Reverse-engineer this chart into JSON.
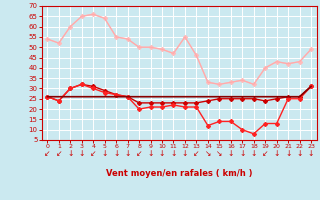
{
  "background_color": "#cbe9f0",
  "grid_color": "#ffffff",
  "xlabel": "Vent moyen/en rafales ( km/h )",
  "xlabel_color": "#cc0000",
  "tick_color": "#cc0000",
  "x": [
    0,
    1,
    2,
    3,
    4,
    5,
    6,
    7,
    8,
    9,
    10,
    11,
    12,
    13,
    14,
    15,
    16,
    17,
    18,
    19,
    20,
    21,
    22,
    23
  ],
  "ylim": [
    5,
    70
  ],
  "yticks": [
    5,
    10,
    15,
    20,
    25,
    30,
    35,
    40,
    45,
    50,
    55,
    60,
    65,
    70
  ],
  "line1": {
    "y": [
      54,
      52,
      60,
      65,
      66,
      64,
      55,
      54,
      50,
      50,
      49,
      47,
      55,
      46,
      33,
      32,
      33,
      34,
      32,
      40,
      43,
      42,
      43,
      49
    ],
    "color": "#ffbbbb",
    "lw": 1.0,
    "marker": "D",
    "ms": 2.0
  },
  "line2": {
    "y": [
      54,
      52,
      60,
      65,
      66,
      64,
      55,
      54,
      50,
      50,
      49,
      47,
      55,
      46,
      33,
      32,
      33,
      34,
      32,
      40,
      43,
      42,
      43,
      49
    ],
    "color": "#ffaaaa",
    "lw": 0.8,
    "marker": null,
    "ms": 0
  },
  "line3": {
    "y": [
      26,
      24,
      30,
      32,
      31,
      29,
      27,
      26,
      23,
      23,
      23,
      23,
      23,
      23,
      24,
      25,
      25,
      25,
      25,
      24,
      25,
      26,
      26,
      31
    ],
    "color": "#cc0000",
    "lw": 1.0,
    "marker": "D",
    "ms": 2.0
  },
  "line4": {
    "y": [
      26,
      24,
      30,
      32,
      30,
      28,
      27,
      26,
      20,
      21,
      21,
      22,
      21,
      21,
      12,
      14,
      14,
      10,
      8,
      13,
      13,
      25,
      25,
      31
    ],
    "color": "#ff2222",
    "lw": 1.0,
    "marker": "D",
    "ms": 2.0
  },
  "line5": {
    "y": [
      26,
      26,
      26,
      26,
      26,
      26,
      26,
      26,
      26,
      26,
      26,
      26,
      26,
      26,
      26,
      26,
      26,
      26,
      26,
      26,
      26,
      26,
      26,
      31
    ],
    "color": "#880000",
    "lw": 1.2,
    "marker": null,
    "ms": 0
  },
  "arrow_color": "#cc0000"
}
